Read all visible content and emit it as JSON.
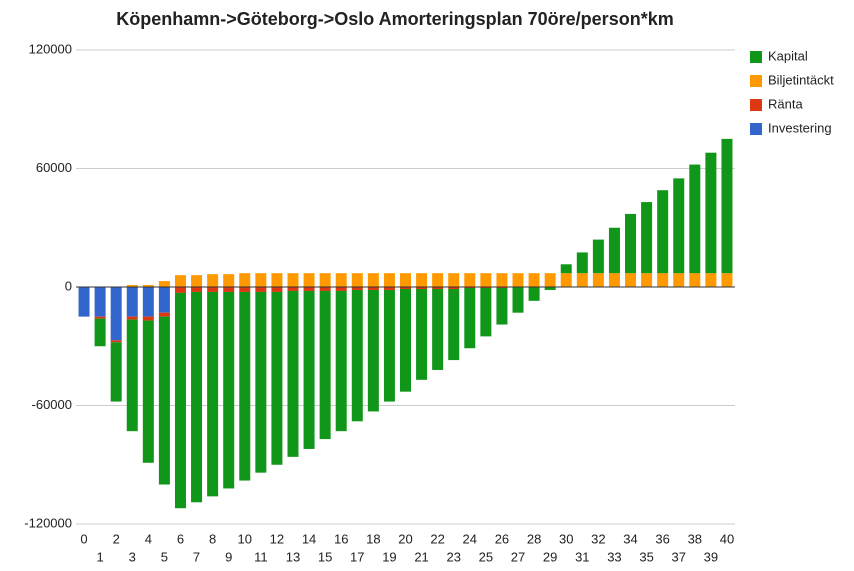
{
  "chart_data": {
    "type": "stacked_bar",
    "title": "Köpenhamn->Göteborg->Oslo Amorteringsplan 70öre/person*km",
    "categories": [
      "0",
      "1",
      "2",
      "3",
      "4",
      "5",
      "6",
      "7",
      "8",
      "9",
      "10",
      "11",
      "12",
      "13",
      "14",
      "15",
      "16",
      "17",
      "18",
      "19",
      "20",
      "21",
      "22",
      "23",
      "24",
      "25",
      "26",
      "27",
      "28",
      "29",
      "30",
      "31",
      "32",
      "33",
      "34",
      "35",
      "36",
      "37",
      "38",
      "39",
      "40"
    ],
    "series": [
      {
        "name": "Kapital",
        "color": "#109618",
        "values": [
          0,
          -14000,
          -30000,
          -56500,
          -72000,
          -85000,
          -109000,
          -106500,
          -103500,
          -99500,
          -95500,
          -91500,
          -87500,
          -84000,
          -80000,
          -75000,
          -71000,
          -66500,
          -61500,
          -56500,
          -52000,
          -46000,
          -41000,
          -36000,
          -30500,
          -24500,
          -18500,
          -13000,
          -7000,
          -1500,
          4500,
          10500,
          17000,
          23000,
          30000,
          36000,
          42000,
          48000,
          55000,
          61000,
          68000
        ]
      },
      {
        "name": "Biljetintäckt",
        "color": "#ff9900",
        "values": [
          0,
          0,
          0,
          1000,
          1000,
          3000,
          6000,
          6000,
          6500,
          6500,
          7000,
          7000,
          7000,
          7000,
          7000,
          7000,
          7000,
          7000,
          7000,
          7000,
          7000,
          7000,
          7000,
          7000,
          7000,
          7000,
          7000,
          7000,
          7000,
          7000,
          7000,
          7000,
          7000,
          7000,
          7000,
          7000,
          7000,
          7000,
          7000,
          7000,
          7000
        ]
      },
      {
        "name": "Ränta",
        "color": "#dc3912",
        "values": [
          0,
          -1000,
          -1000,
          -1500,
          -2000,
          -2000,
          -3000,
          -2500,
          -2500,
          -2500,
          -2500,
          -2500,
          -2500,
          -2000,
          -2000,
          -2000,
          -2000,
          -1500,
          -1500,
          -1500,
          -1000,
          -1000,
          -1000,
          -1000,
          -500,
          -500,
          -500,
          0,
          0,
          0,
          0,
          0,
          0,
          0,
          0,
          0,
          0,
          0,
          0,
          0,
          0
        ]
      },
      {
        "name": "Investering",
        "color": "#3366cc",
        "values": [
          -15000,
          -15000,
          -27000,
          -15000,
          -15000,
          -13000,
          0,
          0,
          0,
          0,
          0,
          0,
          0,
          0,
          0,
          0,
          0,
          0,
          0,
          0,
          0,
          0,
          0,
          0,
          0,
          0,
          0,
          0,
          0,
          0,
          0,
          0,
          0,
          0,
          0,
          0,
          0,
          0,
          0,
          0,
          0
        ]
      }
    ],
    "ylim": [
      -120000,
      120000
    ],
    "yticks": [
      -120000,
      -60000,
      0,
      60000,
      120000
    ],
    "grid": true,
    "legend": "right"
  }
}
